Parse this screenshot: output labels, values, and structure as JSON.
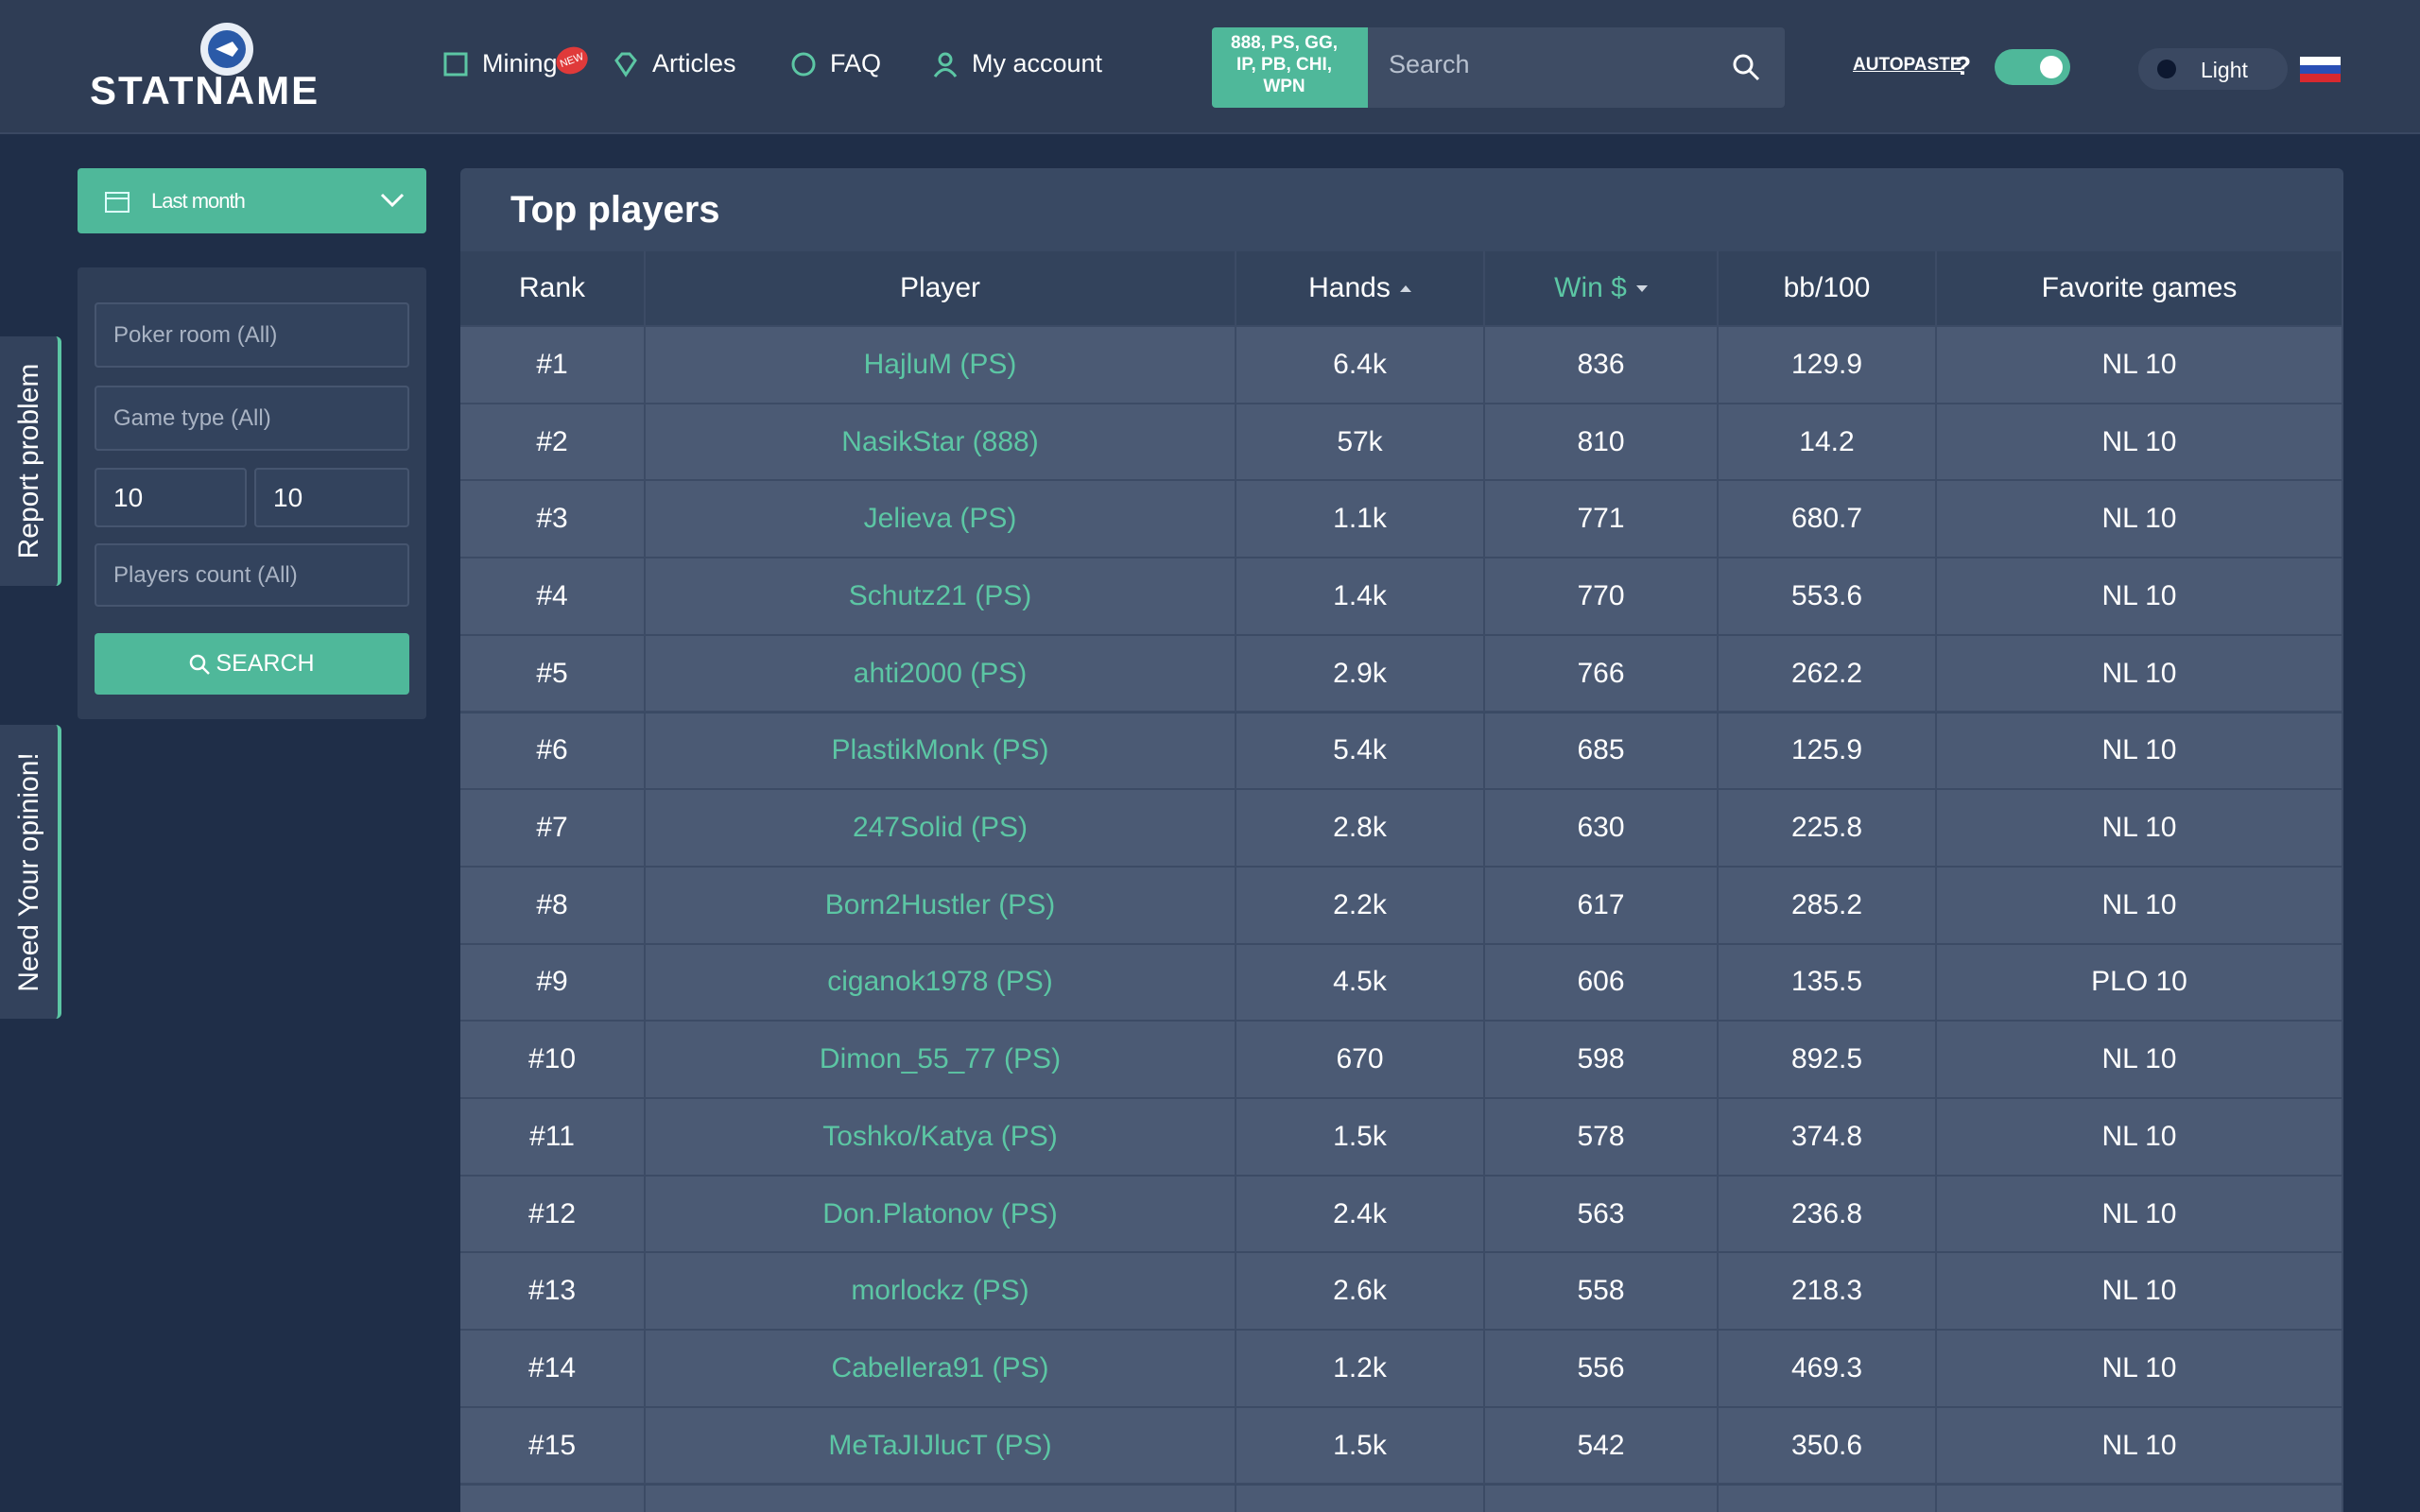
{
  "header": {
    "logo": "STATNAME",
    "nav": [
      "Mining",
      "Articles",
      "FAQ",
      "My account"
    ],
    "nav_badge": "NEW",
    "rooms": "888, PS, GG, IP, PB, CHI, WPN",
    "search_placeholder": "Search",
    "autopaste": "AUTOPASTE",
    "autopaste_help": "?",
    "theme": "Light"
  },
  "sidebar": {
    "period": "Last month",
    "poker_room": "Poker room (All)",
    "game_type": "Game type (All)",
    "min": "10",
    "max": "10",
    "players_count": "Players count (All)",
    "search_button": "SEARCH"
  },
  "side_tabs": [
    "Report problem",
    "Need Your opinion!"
  ],
  "table": {
    "title": "Top players",
    "columns": [
      "Rank",
      "Player",
      "Hands",
      "Win $",
      "bb/100",
      "Favorite games"
    ],
    "rows": [
      [
        "#1",
        "HajluM (PS)",
        "6.4k",
        "836",
        "129.9",
        "NL 10"
      ],
      [
        "#2",
        "NasikStar (888)",
        "57k",
        "810",
        "14.2",
        "NL 10"
      ],
      [
        "#3",
        "Jelieva (PS)",
        "1.1k",
        "771",
        "680.7",
        "NL 10"
      ],
      [
        "#4",
        "Schutz21 (PS)",
        "1.4k",
        "770",
        "553.6",
        "NL 10"
      ],
      [
        "#5",
        "ahti2000 (PS)",
        "2.9k",
        "766",
        "262.2",
        "NL 10"
      ],
      [
        "#6",
        "PlastikMonk (PS)",
        "5.4k",
        "685",
        "125.9",
        "NL 10"
      ],
      [
        "#7",
        "247Solid (PS)",
        "2.8k",
        "630",
        "225.8",
        "NL 10"
      ],
      [
        "#8",
        "Born2Hustler (PS)",
        "2.2k",
        "617",
        "285.2",
        "NL 10"
      ],
      [
        "#9",
        "ciganok1978 (PS)",
        "4.5k",
        "606",
        "135.5",
        "PLO 10"
      ],
      [
        "#10",
        "Dimon_55_77 (PS)",
        "670",
        "598",
        "892.5",
        "NL 10"
      ],
      [
        "#11",
        "Toshko/Katya (PS)",
        "1.5k",
        "578",
        "374.8",
        "NL 10"
      ],
      [
        "#12",
        "Don.Platonov (PS)",
        "2.4k",
        "563",
        "236.8",
        "NL 10"
      ],
      [
        "#13",
        "morlockz (PS)",
        "2.6k",
        "558",
        "218.3",
        "NL 10"
      ],
      [
        "#14",
        "Cabellera91 (PS)",
        "1.2k",
        "556",
        "469.3",
        "NL 10"
      ],
      [
        "#15",
        "MeTaJIJlucT (PS)",
        "1.5k",
        "542",
        "350.6",
        "NL 10"
      ]
    ]
  }
}
